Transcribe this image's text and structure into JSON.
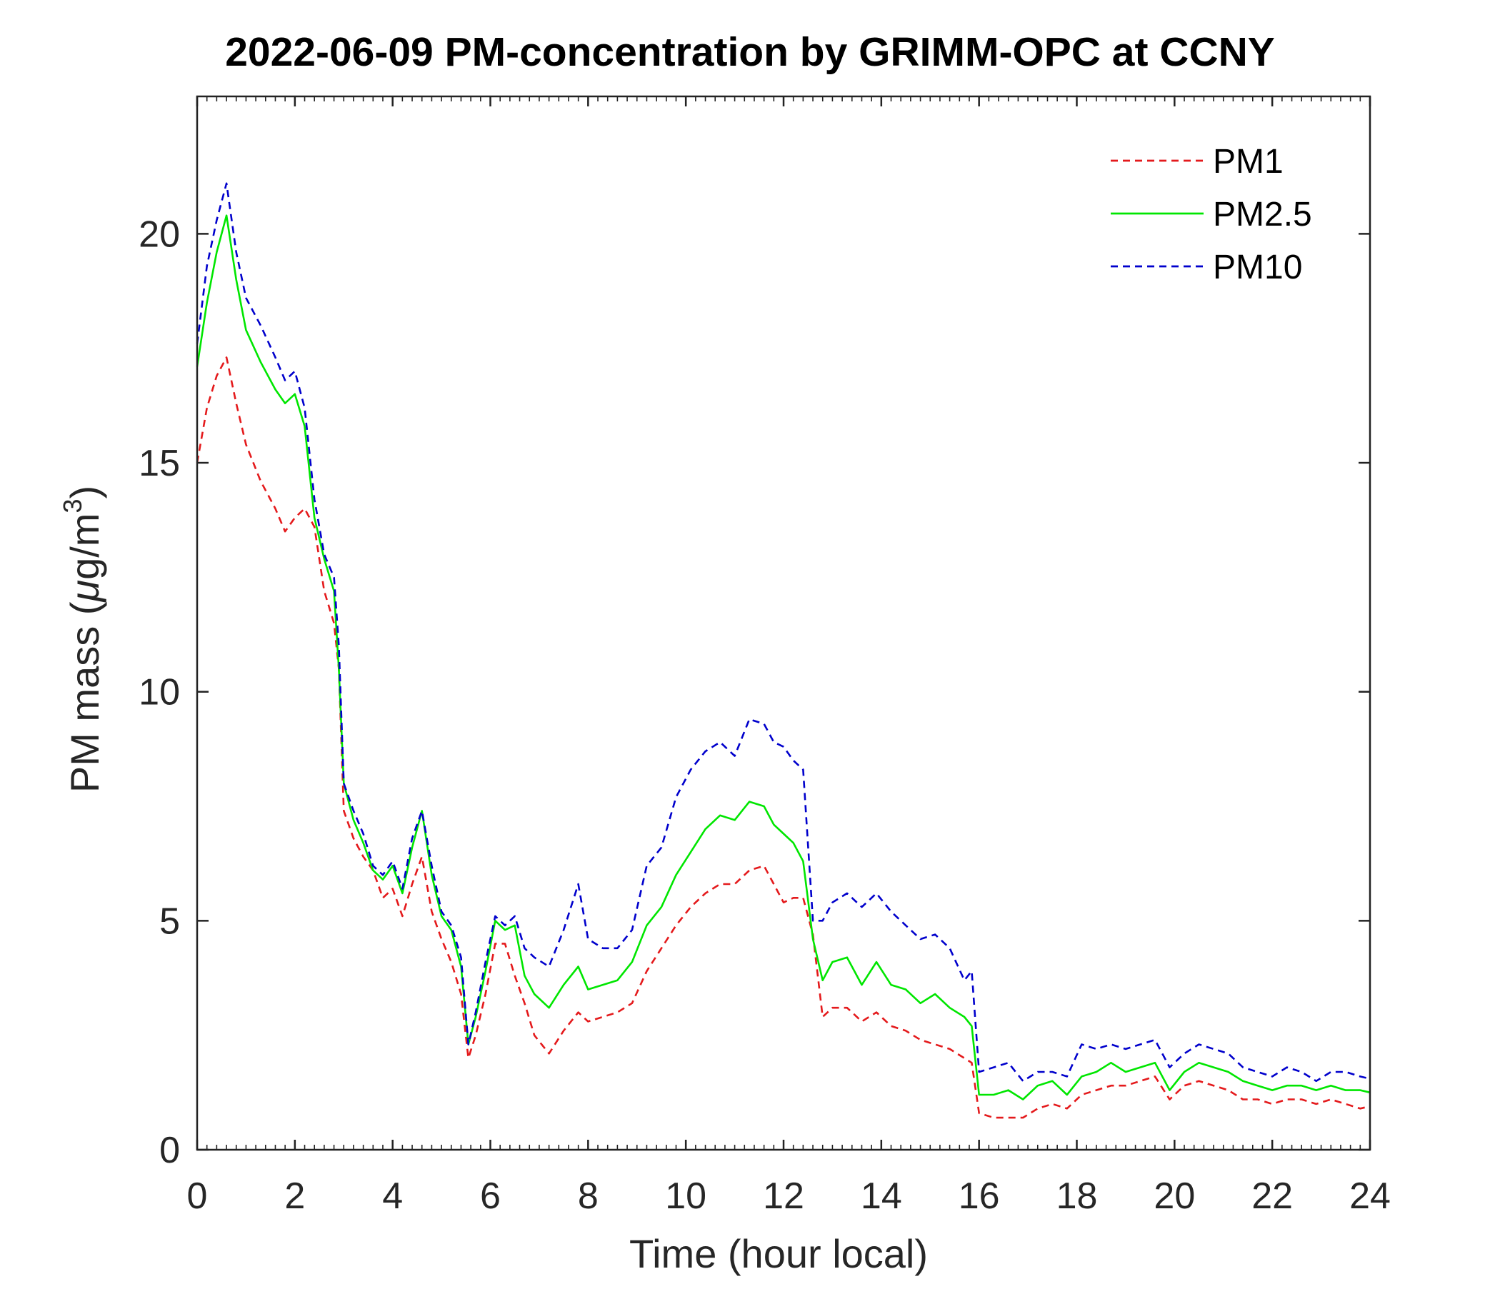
{
  "chart_data": {
    "type": "line",
    "title": "2022-06-09 PM-concentration by GRIMM-OPC at CCNY",
    "xlabel": "Time (hour local)",
    "ylabel_main": "PM mass (",
    "ylabel_mu": "μ",
    "ylabel_unit": "g/m",
    "ylabel_sup": "3",
    "ylabel_close": ")",
    "xlim": [
      0,
      24
    ],
    "ylim": [
      0,
      23
    ],
    "xticks": [
      0,
      2,
      4,
      6,
      8,
      10,
      12,
      14,
      16,
      18,
      20,
      22,
      24
    ],
    "yticks": [
      0,
      5,
      10,
      15,
      20
    ],
    "grid": false,
    "legend_position": "top-right",
    "series": [
      {
        "name": "PM1",
        "color": "#e41a1c",
        "dash": "dashed",
        "x": [
          0,
          0.2,
          0.4,
          0.6,
          0.8,
          1.0,
          1.3,
          1.6,
          1.8,
          2.0,
          2.2,
          2.4,
          2.6,
          2.8,
          2.9,
          3.0,
          3.2,
          3.4,
          3.6,
          3.8,
          4.0,
          4.2,
          4.4,
          4.6,
          4.8,
          5.0,
          5.2,
          5.4,
          5.55,
          5.7,
          5.9,
          6.1,
          6.3,
          6.5,
          6.7,
          6.9,
          7.2,
          7.5,
          7.8,
          8.0,
          8.3,
          8.6,
          8.9,
          9.2,
          9.5,
          9.8,
          10.1,
          10.4,
          10.7,
          11.0,
          11.3,
          11.6,
          11.8,
          12.0,
          12.2,
          12.4,
          12.6,
          12.8,
          13.0,
          13.3,
          13.6,
          13.9,
          14.2,
          14.5,
          14.8,
          15.1,
          15.4,
          15.7,
          15.85,
          16.0,
          16.3,
          16.6,
          16.9,
          17.2,
          17.5,
          17.8,
          18.1,
          18.4,
          18.7,
          19.0,
          19.3,
          19.6,
          19.9,
          20.2,
          20.5,
          20.8,
          21.1,
          21.4,
          21.7,
          22.0,
          22.3,
          22.6,
          22.9,
          23.2,
          23.5,
          23.8,
          24.0
        ],
        "values": [
          15.0,
          16.2,
          16.9,
          17.3,
          16.3,
          15.4,
          14.6,
          14.0,
          13.5,
          13.8,
          14.0,
          13.6,
          12.2,
          11.5,
          10.5,
          7.4,
          6.8,
          6.4,
          6.1,
          5.5,
          5.7,
          5.1,
          5.8,
          6.4,
          5.2,
          4.6,
          4.1,
          3.4,
          2.0,
          2.5,
          3.4,
          4.5,
          4.5,
          3.8,
          3.2,
          2.5,
          2.1,
          2.6,
          3.0,
          2.8,
          2.9,
          3.0,
          3.2,
          3.9,
          4.4,
          4.9,
          5.3,
          5.6,
          5.8,
          5.8,
          6.1,
          6.2,
          5.8,
          5.4,
          5.5,
          5.5,
          4.7,
          2.9,
          3.1,
          3.1,
          2.8,
          3.0,
          2.7,
          2.6,
          2.4,
          2.3,
          2.2,
          2.0,
          1.9,
          0.8,
          0.7,
          0.7,
          0.7,
          0.9,
          1.0,
          0.9,
          1.2,
          1.3,
          1.4,
          1.4,
          1.5,
          1.6,
          1.1,
          1.4,
          1.5,
          1.4,
          1.3,
          1.1,
          1.1,
          1.0,
          1.1,
          1.1,
          1.0,
          1.1,
          1.0,
          0.9,
          0.95
        ]
      },
      {
        "name": "PM2.5",
        "color": "#00e600",
        "dash": "solid",
        "x": [
          0,
          0.2,
          0.4,
          0.6,
          0.8,
          1.0,
          1.3,
          1.6,
          1.8,
          2.0,
          2.2,
          2.4,
          2.6,
          2.8,
          2.9,
          3.0,
          3.2,
          3.4,
          3.6,
          3.8,
          4.0,
          4.2,
          4.4,
          4.6,
          4.8,
          5.0,
          5.2,
          5.4,
          5.55,
          5.7,
          5.9,
          6.1,
          6.3,
          6.5,
          6.7,
          6.9,
          7.2,
          7.5,
          7.8,
          8.0,
          8.3,
          8.6,
          8.9,
          9.2,
          9.5,
          9.8,
          10.1,
          10.4,
          10.7,
          11.0,
          11.3,
          11.6,
          11.8,
          12.0,
          12.2,
          12.4,
          12.6,
          12.8,
          13.0,
          13.3,
          13.6,
          13.9,
          14.2,
          14.5,
          14.8,
          15.1,
          15.4,
          15.7,
          15.85,
          16.0,
          16.3,
          16.6,
          16.9,
          17.2,
          17.5,
          17.8,
          18.1,
          18.4,
          18.7,
          19.0,
          19.3,
          19.6,
          19.9,
          20.2,
          20.5,
          20.8,
          21.1,
          21.4,
          21.7,
          22.0,
          22.3,
          22.6,
          22.9,
          23.2,
          23.5,
          23.8,
          24.0
        ],
        "values": [
          17.1,
          18.5,
          19.6,
          20.4,
          19.0,
          17.9,
          17.2,
          16.6,
          16.3,
          16.5,
          15.8,
          13.8,
          12.9,
          12.2,
          10.5,
          8.0,
          7.2,
          6.7,
          6.1,
          5.9,
          6.2,
          5.6,
          6.6,
          7.4,
          6.0,
          5.1,
          4.8,
          4.0,
          2.3,
          2.9,
          3.9,
          5.0,
          4.8,
          4.9,
          3.8,
          3.4,
          3.1,
          3.6,
          4.0,
          3.5,
          3.6,
          3.7,
          4.1,
          4.9,
          5.3,
          6.0,
          6.5,
          7.0,
          7.3,
          7.2,
          7.6,
          7.5,
          7.1,
          6.9,
          6.7,
          6.3,
          4.6,
          3.7,
          4.1,
          4.2,
          3.6,
          4.1,
          3.6,
          3.5,
          3.2,
          3.4,
          3.1,
          2.9,
          2.7,
          1.2,
          1.2,
          1.3,
          1.1,
          1.4,
          1.5,
          1.2,
          1.6,
          1.7,
          1.9,
          1.7,
          1.8,
          1.9,
          1.3,
          1.7,
          1.9,
          1.8,
          1.7,
          1.5,
          1.4,
          1.3,
          1.4,
          1.4,
          1.3,
          1.4,
          1.3,
          1.3,
          1.25
        ]
      },
      {
        "name": "PM10",
        "color": "#0000cc",
        "dash": "dashed",
        "x": [
          0,
          0.2,
          0.4,
          0.6,
          0.8,
          1.0,
          1.3,
          1.6,
          1.8,
          2.0,
          2.2,
          2.4,
          2.6,
          2.8,
          2.9,
          3.0,
          3.2,
          3.4,
          3.6,
          3.8,
          4.0,
          4.2,
          4.4,
          4.6,
          4.8,
          5.0,
          5.2,
          5.4,
          5.55,
          5.7,
          5.9,
          6.1,
          6.3,
          6.5,
          6.7,
          6.9,
          7.2,
          7.5,
          7.8,
          8.0,
          8.3,
          8.6,
          8.9,
          9.2,
          9.5,
          9.8,
          10.1,
          10.4,
          10.7,
          11.0,
          11.3,
          11.6,
          11.8,
          12.0,
          12.2,
          12.4,
          12.6,
          12.8,
          13.0,
          13.3,
          13.6,
          13.9,
          14.2,
          14.5,
          14.8,
          15.1,
          15.4,
          15.7,
          15.85,
          16.0,
          16.3,
          16.6,
          16.9,
          17.2,
          17.5,
          17.8,
          18.1,
          18.4,
          18.7,
          19.0,
          19.3,
          19.6,
          19.9,
          20.2,
          20.5,
          20.8,
          21.1,
          21.4,
          21.7,
          22.0,
          22.3,
          22.6,
          22.9,
          23.2,
          23.5,
          23.8,
          24.0
        ],
        "values": [
          17.6,
          19.3,
          20.3,
          21.1,
          19.6,
          18.6,
          18.0,
          17.3,
          16.8,
          17.0,
          16.2,
          14.2,
          13.0,
          12.5,
          11.0,
          8.0,
          7.4,
          6.9,
          6.2,
          6.0,
          6.3,
          5.7,
          6.8,
          7.4,
          6.2,
          5.2,
          4.9,
          4.2,
          2.3,
          3.0,
          4.1,
          5.1,
          4.9,
          5.1,
          4.4,
          4.2,
          4.0,
          4.8,
          5.8,
          4.6,
          4.4,
          4.4,
          4.8,
          6.2,
          6.6,
          7.7,
          8.3,
          8.7,
          8.9,
          8.6,
          9.4,
          9.3,
          8.9,
          8.8,
          8.5,
          8.3,
          5.0,
          5.0,
          5.4,
          5.6,
          5.3,
          5.6,
          5.2,
          4.9,
          4.6,
          4.7,
          4.4,
          3.7,
          3.9,
          1.7,
          1.8,
          1.9,
          1.5,
          1.7,
          1.7,
          1.6,
          2.3,
          2.2,
          2.3,
          2.2,
          2.3,
          2.4,
          1.8,
          2.1,
          2.3,
          2.2,
          2.1,
          1.8,
          1.7,
          1.6,
          1.8,
          1.7,
          1.5,
          1.7,
          1.7,
          1.6,
          1.55
        ]
      }
    ]
  }
}
